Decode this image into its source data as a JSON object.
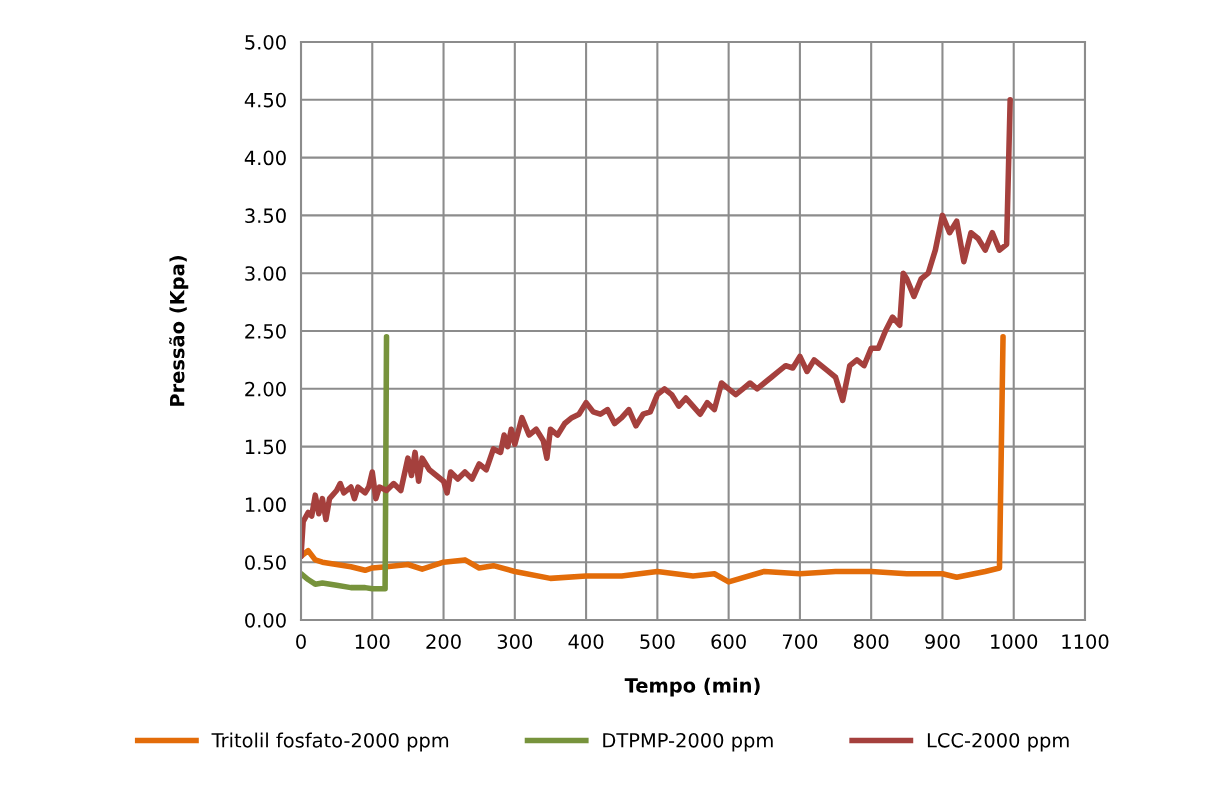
{
  "chart_data": {
    "type": "line",
    "xlabel": "Tempo (min)",
    "ylabel": "Pressão (Kpa)",
    "xlim": [
      0,
      1100
    ],
    "xticks": [
      0,
      100,
      200,
      300,
      400,
      500,
      600,
      700,
      800,
      900,
      1000,
      1100
    ],
    "ylim": [
      0,
      5
    ],
    "yticks": [
      {
        "value": 0,
        "label": "0.00"
      },
      {
        "value": 0.5,
        "label": "0.50"
      },
      {
        "value": 1,
        "label": "1.00"
      },
      {
        "value": 1.5,
        "label": "1.50"
      },
      {
        "value": 2,
        "label": "2.00"
      },
      {
        "value": 2.5,
        "label": "2.50"
      },
      {
        "value": 3,
        "label": "3.00"
      },
      {
        "value": 3.5,
        "label": "3.50"
      },
      {
        "value": 4,
        "label": "4.00"
      },
      {
        "value": 4.5,
        "label": "4.50"
      },
      {
        "value": 5,
        "label": "5.00"
      }
    ],
    "grid": true,
    "legend": "bottom",
    "marker": "none",
    "line_style": "solid",
    "series": [
      {
        "name": "Tritolil fosfato-2000 ppm",
        "color": "#e36c09",
        "x": [
          0,
          10,
          20,
          30,
          50,
          70,
          90,
          100,
          120,
          150,
          170,
          200,
          230,
          250,
          270,
          300,
          350,
          400,
          450,
          500,
          550,
          580,
          600,
          650,
          700,
          750,
          800,
          850,
          900,
          920,
          960,
          980,
          985
        ],
        "values": [
          0.55,
          0.6,
          0.52,
          0.5,
          0.48,
          0.46,
          0.43,
          0.45,
          0.46,
          0.48,
          0.44,
          0.5,
          0.52,
          0.45,
          0.47,
          0.42,
          0.36,
          0.38,
          0.38,
          0.42,
          0.38,
          0.4,
          0.33,
          0.42,
          0.4,
          0.42,
          0.42,
          0.4,
          0.4,
          0.37,
          0.42,
          0.45,
          2.45
        ]
      },
      {
        "name": "DTPMP-2000 ppm",
        "color": "#77933c",
        "x": [
          0,
          10,
          20,
          30,
          50,
          70,
          90,
          100,
          118,
          120
        ],
        "values": [
          0.4,
          0.35,
          0.31,
          0.32,
          0.3,
          0.28,
          0.28,
          0.27,
          0.27,
          2.45
        ]
      },
      {
        "name": "LCC-2000 ppm",
        "color": "#a5403d",
        "x": [
          0,
          3,
          10,
          15,
          20,
          25,
          30,
          35,
          40,
          50,
          55,
          60,
          70,
          75,
          80,
          90,
          95,
          100,
          105,
          110,
          120,
          130,
          140,
          150,
          155,
          160,
          165,
          170,
          180,
          190,
          200,
          205,
          210,
          220,
          230,
          240,
          250,
          260,
          270,
          280,
          285,
          290,
          295,
          300,
          310,
          320,
          330,
          340,
          345,
          350,
          360,
          370,
          380,
          390,
          400,
          410,
          420,
          430,
          440,
          450,
          460,
          470,
          480,
          490,
          500,
          510,
          520,
          530,
          540,
          550,
          560,
          570,
          580,
          590,
          600,
          610,
          620,
          630,
          640,
          650,
          660,
          670,
          680,
          690,
          700,
          710,
          720,
          730,
          740,
          750,
          760,
          770,
          780,
          790,
          800,
          810,
          820,
          830,
          840,
          845,
          850,
          860,
          870,
          880,
          890,
          900,
          910,
          920,
          930,
          940,
          950,
          960,
          970,
          980,
          990,
          995
        ],
        "values": [
          0.55,
          0.85,
          0.93,
          0.9,
          1.08,
          0.92,
          1.05,
          0.87,
          1.05,
          1.12,
          1.18,
          1.1,
          1.15,
          1.05,
          1.15,
          1.1,
          1.15,
          1.28,
          1.05,
          1.15,
          1.12,
          1.18,
          1.12,
          1.4,
          1.25,
          1.45,
          1.2,
          1.4,
          1.3,
          1.25,
          1.2,
          1.1,
          1.28,
          1.22,
          1.28,
          1.22,
          1.35,
          1.3,
          1.48,
          1.45,
          1.6,
          1.5,
          1.65,
          1.52,
          1.75,
          1.6,
          1.65,
          1.55,
          1.4,
          1.65,
          1.6,
          1.7,
          1.75,
          1.78,
          1.88,
          1.8,
          1.78,
          1.82,
          1.7,
          1.75,
          1.82,
          1.68,
          1.78,
          1.8,
          1.95,
          2.0,
          1.95,
          1.85,
          1.92,
          1.85,
          1.78,
          1.88,
          1.82,
          2.05,
          2.0,
          1.95,
          2.0,
          2.05,
          2.0,
          2.05,
          2.1,
          2.15,
          2.2,
          2.18,
          2.28,
          2.15,
          2.25,
          2.2,
          2.15,
          2.1,
          1.9,
          2.2,
          2.25,
          2.2,
          2.35,
          2.35,
          2.5,
          2.62,
          2.55,
          3.0,
          2.95,
          2.8,
          2.95,
          3.0,
          3.2,
          3.5,
          3.35,
          3.45,
          3.1,
          3.35,
          3.3,
          3.2,
          3.35,
          3.2,
          3.25,
          4.5
        ]
      }
    ]
  }
}
